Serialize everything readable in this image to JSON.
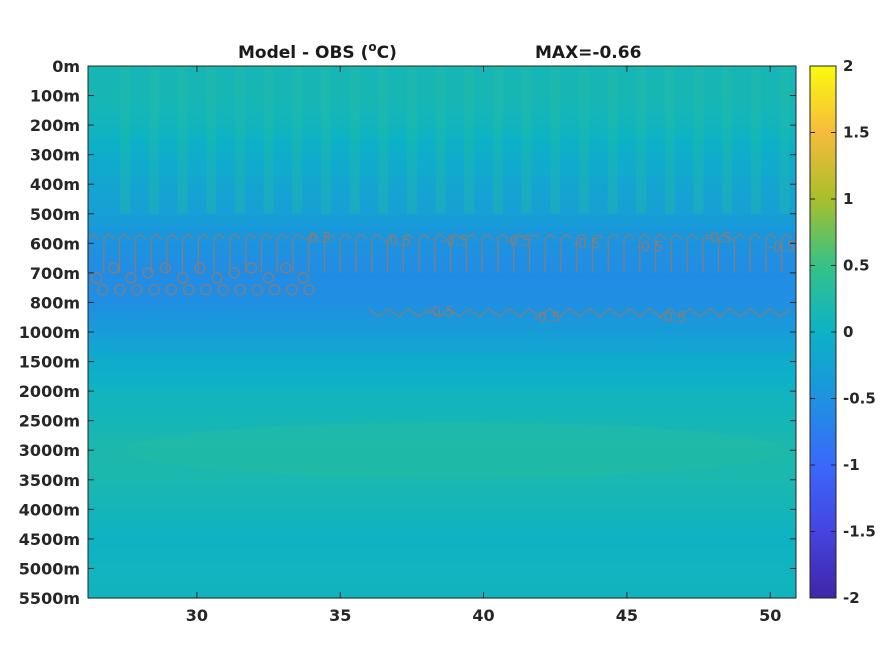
{
  "chart_data": {
    "type": "heatmap",
    "title": "Model - OBS (",
    "title_super": "o",
    "title_unit": "C)",
    "max_text": "MAX=-0.66",
    "y_ticks": [
      "0m",
      "100m",
      "200m",
      "300m",
      "400m",
      "500m",
      "600m",
      "700m",
      "800m",
      "1000m",
      "1500m",
      "2000m",
      "2500m",
      "3000m",
      "3500m",
      "4000m",
      "4500m",
      "5000m",
      "5500m"
    ],
    "x_ticks": [
      30,
      35,
      40,
      45,
      50
    ],
    "xlim": [
      26.2,
      50.9
    ],
    "colorbar_ticks": [
      "2",
      "1.5",
      "1",
      "0.5",
      "0",
      "-0.5",
      "-1",
      "-1.5",
      "-2"
    ],
    "clim": [
      -2,
      2
    ],
    "colormap": "parula",
    "contour_level": -0.5,
    "depth_profile": [
      {
        "depth": "0m",
        "value": 0.12
      },
      {
        "depth": "100m",
        "value": 0.14
      },
      {
        "depth": "200m",
        "value": 0.08
      },
      {
        "depth": "300m",
        "value": -0.08
      },
      {
        "depth": "400m",
        "value": -0.2
      },
      {
        "depth": "500m",
        "value": -0.3
      },
      {
        "depth": "600m",
        "value": -0.5
      },
      {
        "depth": "700m",
        "value": -0.58
      },
      {
        "depth": "800m",
        "value": -0.55
      },
      {
        "depth": "1000m",
        "value": -0.35
      },
      {
        "depth": "1500m",
        "value": -0.1
      },
      {
        "depth": "2000m",
        "value": 0.05
      },
      {
        "depth": "2500m",
        "value": 0.12
      },
      {
        "depth": "3000m",
        "value": 0.2
      },
      {
        "depth": "3500m",
        "value": 0.18
      },
      {
        "depth": "4000m",
        "value": 0.1
      },
      {
        "depth": "4500m",
        "value": 0.02
      },
      {
        "depth": "5000m",
        "value": 0.06
      },
      {
        "depth": "5500m",
        "value": 0.05
      }
    ],
    "contour_labels": [
      {
        "x": 34.2,
        "depth_index": 5.8,
        "text": "-0.5"
      },
      {
        "x": 37.0,
        "depth_index": 5.9,
        "text": "-0.5"
      },
      {
        "x": 39.0,
        "depth_index": 5.9,
        "text": "-0.5"
      },
      {
        "x": 41.2,
        "depth_index": 5.9,
        "text": "-0.5"
      },
      {
        "x": 43.6,
        "depth_index": 6.0,
        "text": "-0.5"
      },
      {
        "x": 45.8,
        "depth_index": 6.1,
        "text": "-0.5"
      },
      {
        "x": 48.2,
        "depth_index": 5.8,
        "text": "-0.5"
      },
      {
        "x": 50.4,
        "depth_index": 6.1,
        "text": "-0.5"
      },
      {
        "x": 38.5,
        "depth_index": 8.3,
        "text": "-0.5"
      },
      {
        "x": 42.2,
        "depth_index": 8.5,
        "text": "-0.5"
      },
      {
        "x": 46.6,
        "depth_index": 8.5,
        "text": "-0.5"
      }
    ]
  }
}
